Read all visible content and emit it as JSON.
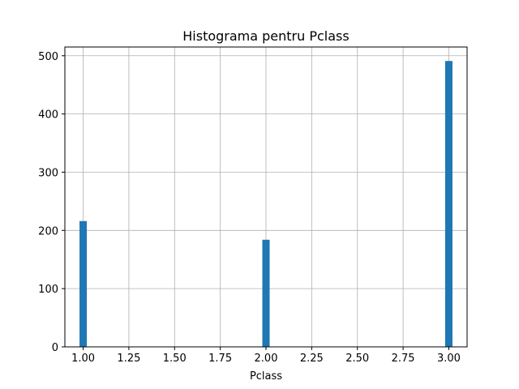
{
  "chart_data": {
    "type": "bar",
    "title": "Histograma pentru Pclass",
    "xlabel": "Pclass",
    "ylabel": "",
    "x": [
      1,
      2,
      3
    ],
    "values": [
      216,
      184,
      491
    ],
    "bin_width": 0.04,
    "xlim": [
      0.9,
      3.1
    ],
    "ylim": [
      0,
      515
    ],
    "xticks": [
      1.0,
      1.25,
      1.5,
      1.75,
      2.0,
      2.25,
      2.5,
      2.75,
      3.0
    ],
    "xtick_labels": [
      "1.00",
      "1.25",
      "1.50",
      "1.75",
      "2.00",
      "2.25",
      "2.50",
      "2.75",
      "3.00"
    ],
    "yticks": [
      0,
      100,
      200,
      300,
      400,
      500
    ],
    "ytick_labels": [
      "0",
      "100",
      "200",
      "300",
      "400",
      "500"
    ],
    "grid": true,
    "bar_color": "#1f77b4",
    "grid_color": "#b0b0b0"
  }
}
